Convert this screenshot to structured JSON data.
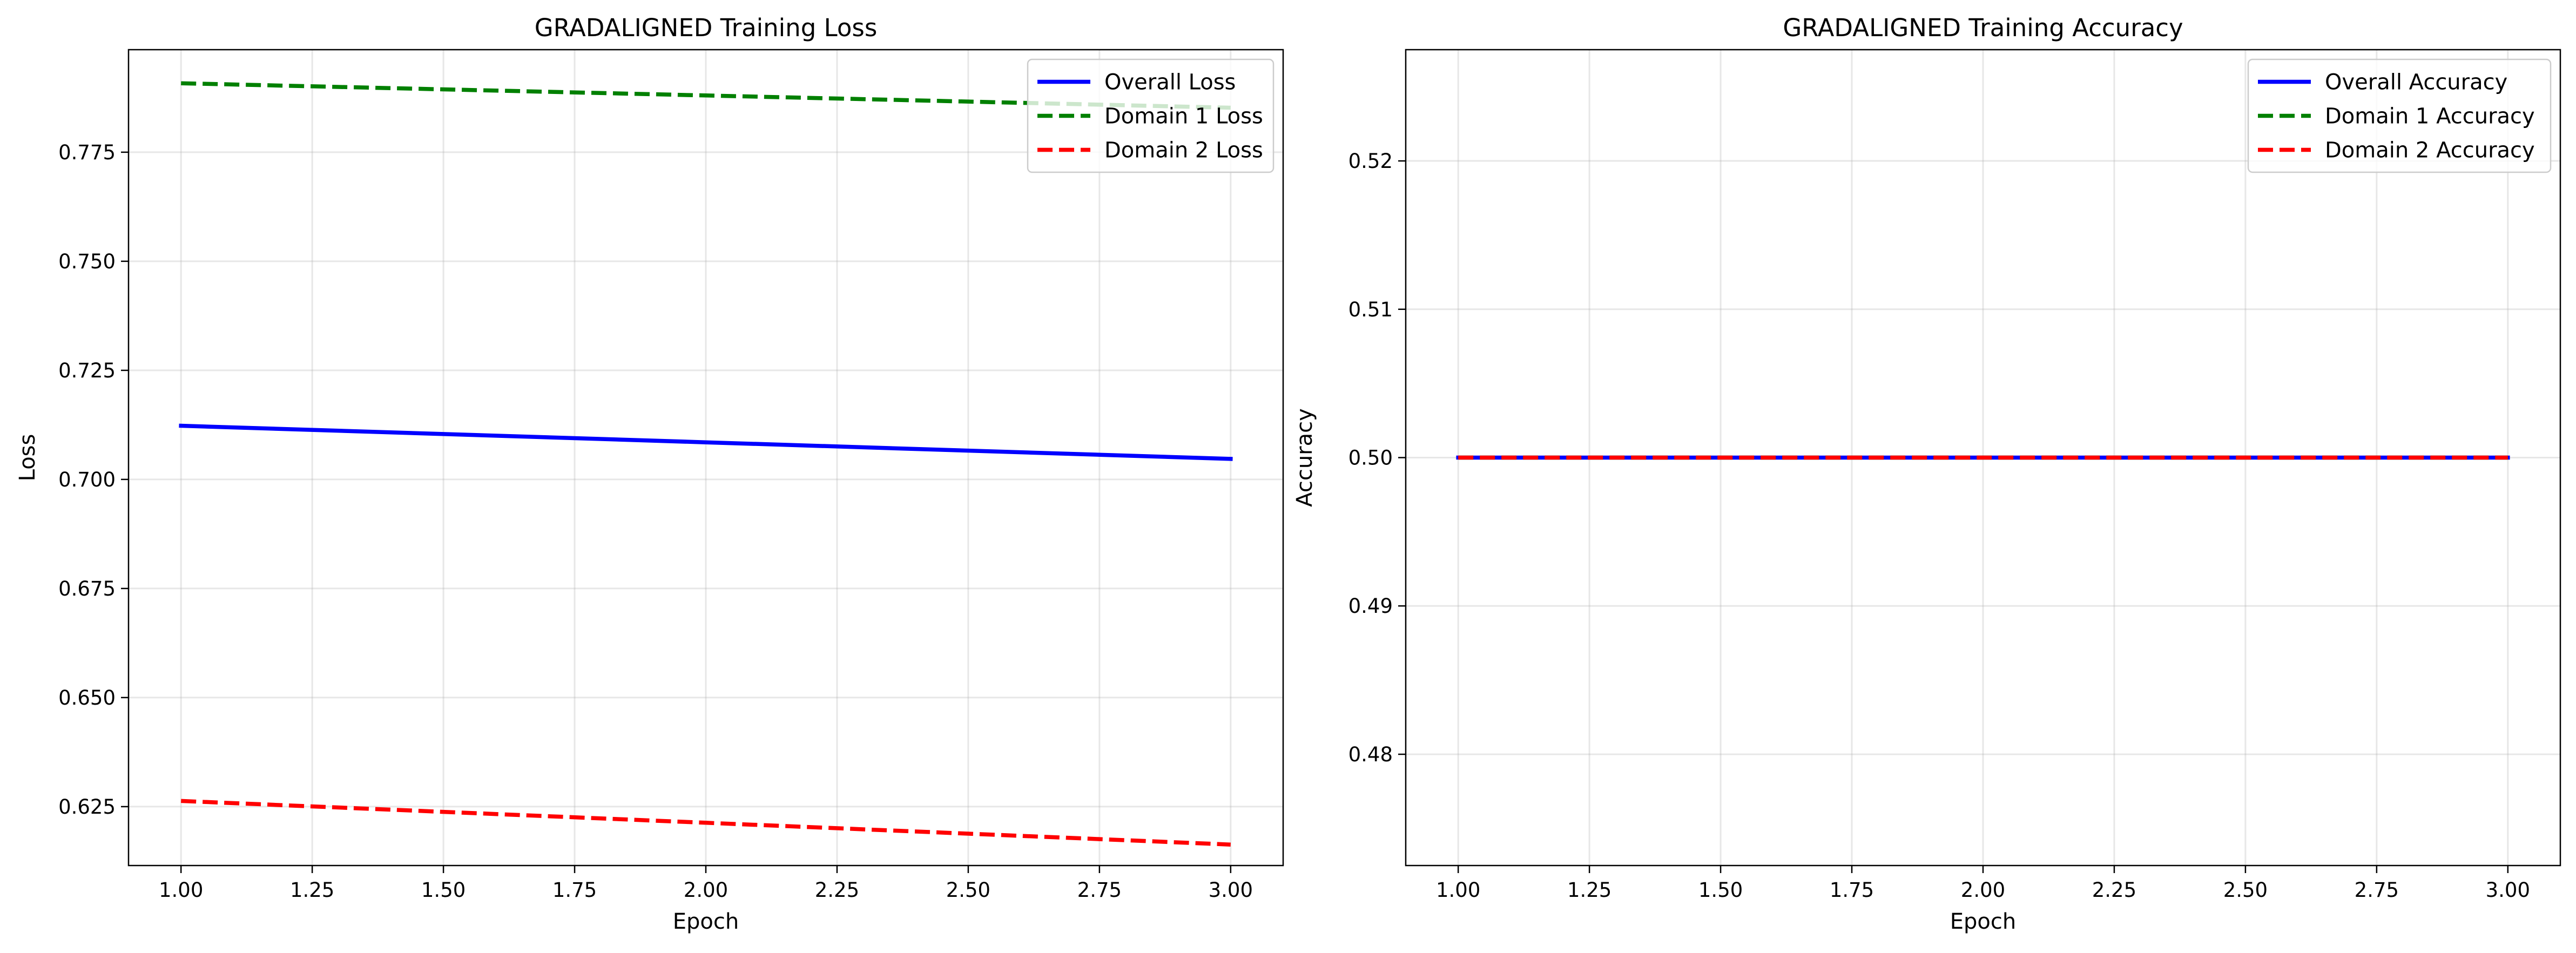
{
  "chart_data": [
    {
      "type": "line",
      "title": "GRADALIGNED Training Loss",
      "xlabel": "Epoch",
      "ylabel": "Loss",
      "x": [
        1,
        2,
        3
      ],
      "xlim": [
        0.9,
        3.1
      ],
      "ylim": [
        0.6115,
        0.7985
      ],
      "xticks": [
        1.0,
        1.25,
        1.5,
        1.75,
        2.0,
        2.25,
        2.5,
        2.75,
        3.0
      ],
      "xtick_labels": [
        "1.00",
        "1.25",
        "1.50",
        "1.75",
        "2.00",
        "2.25",
        "2.50",
        "2.75",
        "3.00"
      ],
      "yticks": [
        0.625,
        0.65,
        0.675,
        0.7,
        0.725,
        0.75,
        0.775
      ],
      "ytick_labels": [
        "0.625",
        "0.650",
        "0.675",
        "0.700",
        "0.725",
        "0.750",
        "0.775"
      ],
      "grid": true,
      "legend": "top-right",
      "series": [
        {
          "name": "Overall Loss",
          "values": [
            0.7123,
            0.7085,
            0.7047
          ],
          "color": "#0000ff",
          "style": "solid"
        },
        {
          "name": "Domain 1 Loss",
          "values": [
            0.7908,
            0.788,
            0.7852
          ],
          "color": "#008000",
          "style": "dashed"
        },
        {
          "name": "Domain 2 Loss",
          "values": [
            0.6263,
            0.6213,
            0.6163
          ],
          "color": "#ff0000",
          "style": "dashed"
        }
      ]
    },
    {
      "type": "line",
      "title": "GRADALIGNED Training Accuracy",
      "xlabel": "Epoch",
      "ylabel": "Accuracy",
      "x": [
        1,
        2,
        3
      ],
      "xlim": [
        0.9,
        3.1
      ],
      "ylim": [
        0.4725,
        0.5275
      ],
      "xticks": [
        1.0,
        1.25,
        1.5,
        1.75,
        2.0,
        2.25,
        2.5,
        2.75,
        3.0
      ],
      "xtick_labels": [
        "1.00",
        "1.25",
        "1.50",
        "1.75",
        "2.00",
        "2.25",
        "2.50",
        "2.75",
        "3.00"
      ],
      "yticks": [
        0.48,
        0.49,
        0.5,
        0.51,
        0.52
      ],
      "ytick_labels": [
        "0.48",
        "0.49",
        "0.50",
        "0.51",
        "0.52"
      ],
      "grid": true,
      "legend": "top-right",
      "series": [
        {
          "name": "Overall Accuracy",
          "values": [
            0.5,
            0.5,
            0.5
          ],
          "color": "#0000ff",
          "style": "solid"
        },
        {
          "name": "Domain 1 Accuracy",
          "values": [
            0.5,
            0.5,
            0.5
          ],
          "color": "#008000",
          "style": "dashed"
        },
        {
          "name": "Domain 2 Accuracy",
          "values": [
            0.5,
            0.5,
            0.5
          ],
          "color": "#ff0000",
          "style": "dashed"
        }
      ]
    }
  ]
}
